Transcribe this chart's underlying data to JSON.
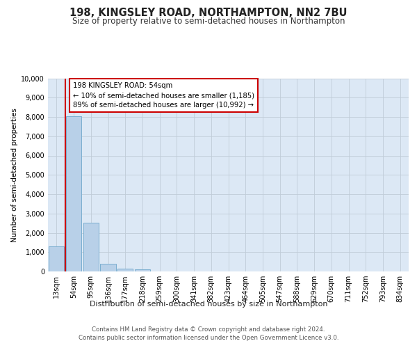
{
  "title": "198, KINGSLEY ROAD, NORTHAMPTON, NN2 7BU",
  "subtitle": "Size of property relative to semi-detached houses in Northampton",
  "xlabel_bottom": "Distribution of semi-detached houses by size in Northampton",
  "ylabel": "Number of semi-detached properties",
  "categories": [
    "13sqm",
    "54sqm",
    "95sqm",
    "136sqm",
    "177sqm",
    "218sqm",
    "259sqm",
    "300sqm",
    "341sqm",
    "382sqm",
    "423sqm",
    "464sqm",
    "505sqm",
    "547sqm",
    "588sqm",
    "629sqm",
    "670sqm",
    "711sqm",
    "752sqm",
    "793sqm",
    "834sqm"
  ],
  "values": [
    1300,
    8050,
    2520,
    400,
    155,
    105,
    0,
    0,
    0,
    0,
    0,
    0,
    0,
    0,
    0,
    0,
    0,
    0,
    0,
    0,
    0
  ],
  "bar_color": "#b8d0e8",
  "bar_edge_color": "#7aaed0",
  "vline_color": "#cc0000",
  "annotation_line1": "198 KINGSLEY ROAD: 54sqm",
  "annotation_line2": "← 10% of semi-detached houses are smaller (1,185)",
  "annotation_line3": "89% of semi-detached houses are larger (10,992) →",
  "annotation_box_color": "#ffffff",
  "annotation_box_edge": "#cc0000",
  "ylim": [
    0,
    10000
  ],
  "yticks": [
    0,
    1000,
    2000,
    3000,
    4000,
    5000,
    6000,
    7000,
    8000,
    9000,
    10000
  ],
  "footer_line1": "Contains HM Land Registry data © Crown copyright and database right 2024.",
  "footer_line2": "Contains public sector information licensed under the Open Government Licence v3.0.",
  "bg_color": "#ffffff",
  "plot_bg_color": "#dce8f5",
  "grid_color": "#c0ccd8"
}
